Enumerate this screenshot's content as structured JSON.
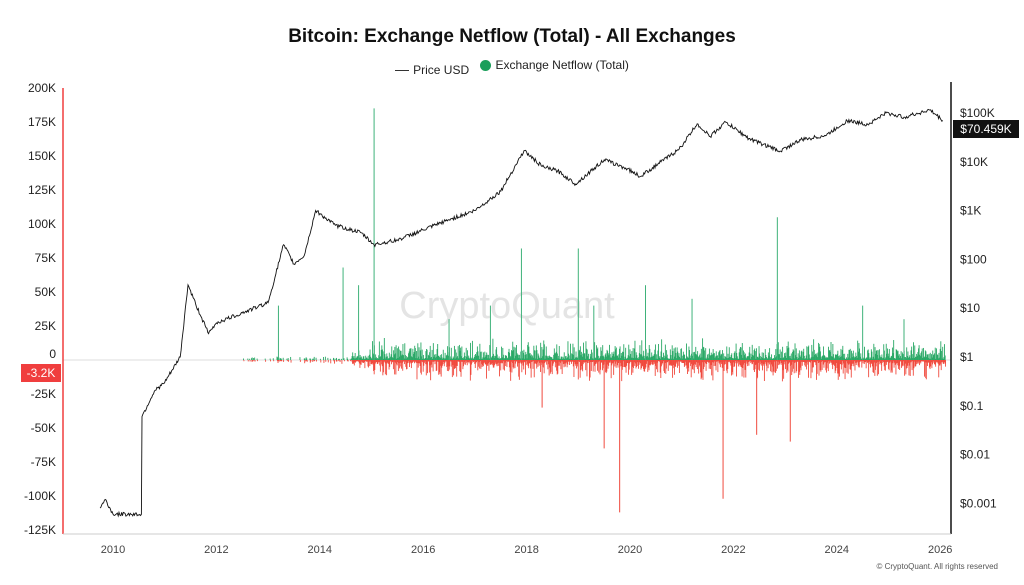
{
  "chart_data": {
    "type": "bar+line",
    "title": "Bitcoin: Exchange Netflow (Total) - All Exchanges",
    "legend": [
      {
        "name": "Price USD",
        "color": "#222222",
        "style": "line"
      },
      {
        "name": "Exchange Netflow (Total)",
        "color": "#1a9e5a",
        "style": "dot"
      }
    ],
    "legend_placement": "top-center",
    "watermark": "CryptoQuant",
    "copyright": "© CryptoQuant. All rights reserved",
    "x_ticks": [
      "2010",
      "2012",
      "2014",
      "2016",
      "2018",
      "2020",
      "2022",
      "2024",
      "2026"
    ],
    "xlim": [
      2009.0,
      2026.2
    ],
    "y_left": {
      "ticks": [
        "200K",
        "175K",
        "150K",
        "125K",
        "100K",
        "75K",
        "50K",
        "25K",
        "0",
        "-25K",
        "-50K",
        "-75K",
        "-100K",
        "-125K"
      ],
      "values": [
        200000,
        175000,
        150000,
        125000,
        100000,
        75000,
        50000,
        25000,
        0,
        -25000,
        -50000,
        -75000,
        -100000,
        -125000
      ],
      "range": [
        -125000,
        200000
      ],
      "current_label": "-3.2K",
      "current_color": "#f03e3e"
    },
    "y_right": {
      "scale": "log",
      "ticks": [
        "$100K",
        "$10K",
        "$1K",
        "$100",
        "$10",
        "$1",
        "$0.1",
        "$0.01",
        "$0.001"
      ],
      "values": [
        100000,
        10000,
        1000,
        100,
        10,
        1,
        0.1,
        0.01,
        0.001
      ],
      "current_label": "$70.459K"
    },
    "price_series": {
      "name": "Price USD",
      "x": [
        2009.75,
        2009.85,
        2010.0,
        2010.55,
        2010.56,
        2010.8,
        2011.0,
        2011.3,
        2011.45,
        2011.6,
        2011.85,
        2012.0,
        2012.5,
        2013.0,
        2013.3,
        2013.5,
        2013.7,
        2013.92,
        2014.3,
        2014.8,
        2015.05,
        2015.5,
        2016.0,
        2016.5,
        2017.0,
        2017.5,
        2017.95,
        2018.3,
        2018.6,
        2018.95,
        2019.5,
        2019.95,
        2020.2,
        2020.6,
        2020.95,
        2021.3,
        2021.55,
        2021.85,
        2022.3,
        2022.9,
        2023.3,
        2023.8,
        2024.2,
        2024.6,
        2024.95,
        2025.3,
        2025.8,
        2026.05
      ],
      "y": [
        0.0008,
        0.0012,
        0.0006,
        0.0006,
        0.06,
        0.2,
        0.3,
        1,
        30,
        12,
        3,
        5,
        8,
        13,
        200,
        80,
        120,
        1000,
        500,
        350,
        200,
        250,
        400,
        650,
        1000,
        2500,
        17000,
        8000,
        6500,
        3500,
        11000,
        7200,
        5000,
        10000,
        18000,
        60000,
        33000,
        65000,
        30000,
        16500,
        28000,
        35000,
        70000,
        58000,
        100000,
        82000,
        115000,
        70459
      ]
    },
    "netflow_spikes": {
      "name": "Exchange Netflow (Total)",
      "x": [
        2013.2,
        2014.45,
        2014.75,
        2015.05,
        2016.5,
        2017.3,
        2017.9,
        2018.3,
        2019.0,
        2019.3,
        2019.5,
        2019.8,
        2020.3,
        2021.2,
        2021.8,
        2022.45,
        2022.85,
        2023.1,
        2024.5,
        2025.3
      ],
      "y": [
        40000,
        68000,
        55000,
        185000,
        30000,
        40000,
        82000,
        -35000,
        82000,
        40000,
        -65000,
        -112000,
        55000,
        45000,
        -102000,
        -55000,
        105000,
        -60000,
        40000,
        30000
      ]
    },
    "grid": false
  }
}
